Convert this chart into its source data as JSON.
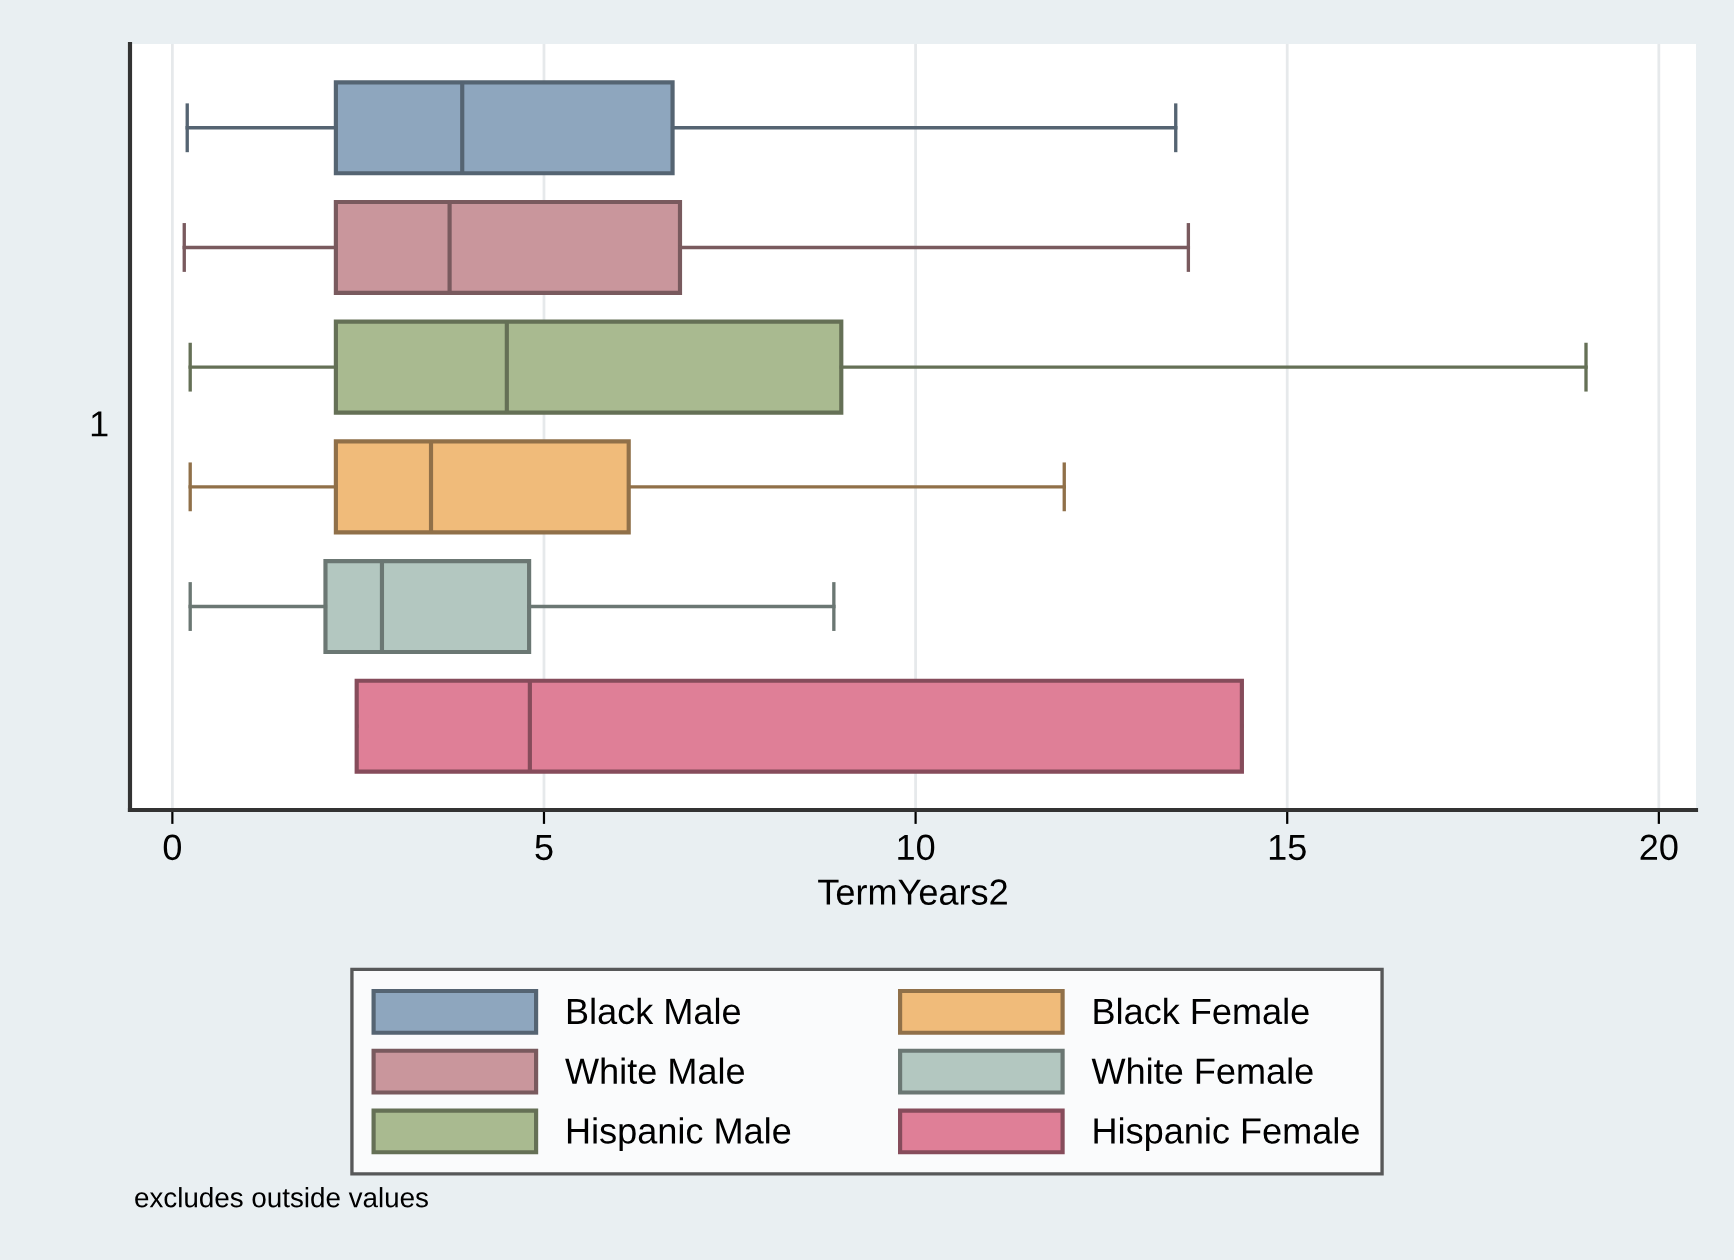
{
  "chart_data": {
    "type": "box",
    "orientation": "horizontal",
    "categories": [
      null,
      null,
      null,
      null,
      null,
      null
    ],
    "ylabel": "1",
    "xlabel": "TermYears2",
    "xlim": [
      -0.57,
      20.5
    ],
    "xticks": [
      0,
      5,
      10,
      15,
      20
    ],
    "grid": "x",
    "legend": "bottom",
    "annotations": [
      "excludes outside values"
    ],
    "series": [
      {
        "name": "Black Male",
        "color": "#8ea6be",
        "boxes": [
          {
            "low": 0.2,
            "q1": 2.2,
            "median": 3.9,
            "q3": 6.73,
            "high": 13.5
          },
          null,
          null,
          null,
          null,
          null
        ]
      },
      {
        "name": "White Male",
        "color": "#c9969c",
        "boxes": [
          null,
          {
            "low": 0.16,
            "q1": 2.2,
            "median": 3.73,
            "q3": 6.83,
            "high": 13.67
          },
          null,
          null,
          null,
          null
        ]
      },
      {
        "name": "Hispanic Male",
        "color": "#a9ba90",
        "boxes": [
          null,
          null,
          {
            "low": 0.24,
            "q1": 2.2,
            "median": 4.5,
            "q3": 9.0,
            "high": 19.02
          },
          null,
          null,
          null
        ]
      },
      {
        "name": "Black Female",
        "color": "#f0bb7a",
        "boxes": [
          null,
          null,
          null,
          {
            "low": 0.24,
            "q1": 2.2,
            "median": 3.48,
            "q3": 6.14,
            "high": 12.0
          },
          null,
          null
        ]
      },
      {
        "name": "White Female",
        "color": "#b3c7c0",
        "boxes": [
          null,
          null,
          null,
          null,
          {
            "low": 0.24,
            "q1": 2.06,
            "median": 2.82,
            "q3": 4.8,
            "high": 8.9
          },
          null
        ]
      },
      {
        "name": "Hispanic Female",
        "color": "#df7f97",
        "boxes": [
          null,
          null,
          null,
          null,
          null,
          {
            "low": 2.48,
            "q1": 2.48,
            "median": 4.81,
            "q3": 14.39,
            "high": 14.39
          }
        ]
      }
    ]
  }
}
